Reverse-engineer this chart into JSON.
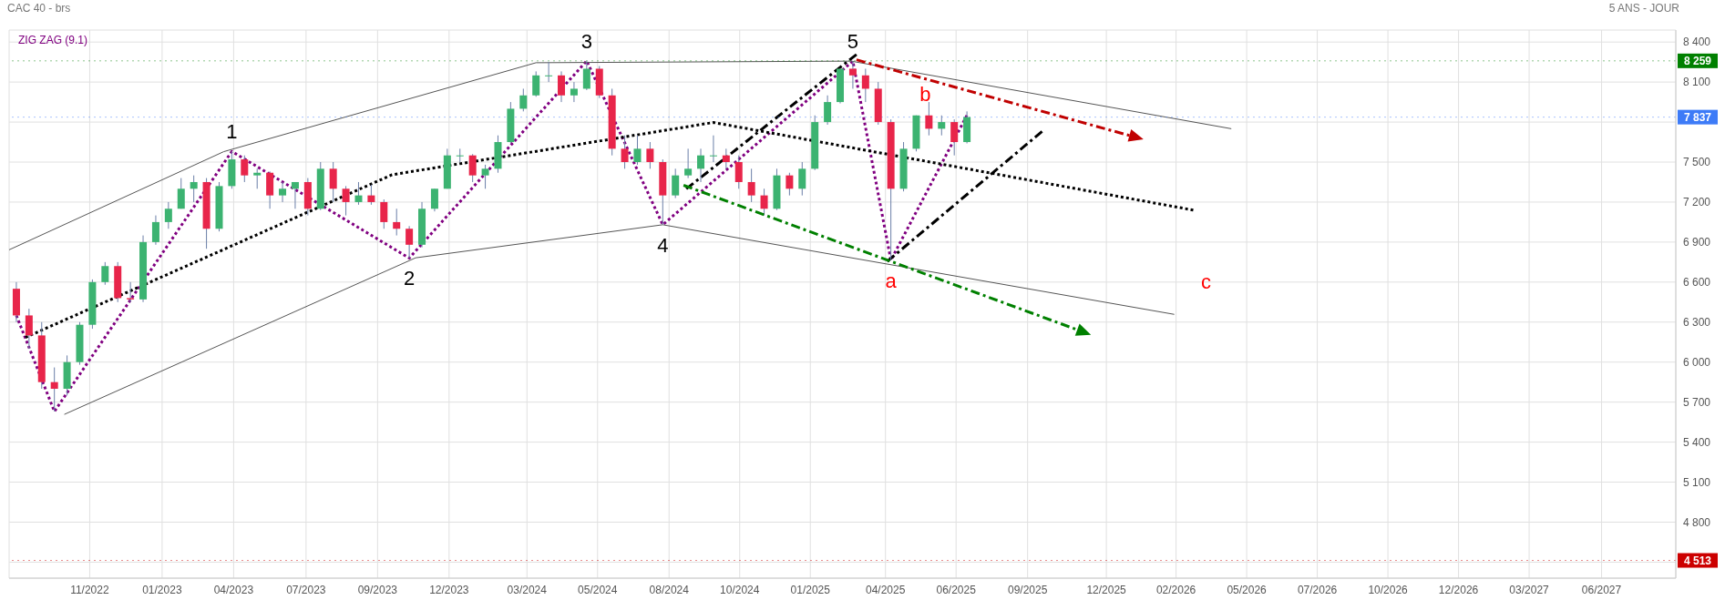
{
  "chart_data": {
    "type": "candlestick",
    "title": "CAC 40 - brs",
    "subtitle": "5 ANS - JOUR",
    "x": [
      "2022-08-15",
      "2022-08-29",
      "2022-09-12",
      "2022-09-26",
      "2022-10-10",
      "2022-10-24",
      "2022-11-07",
      "2022-11-21",
      "2022-12-05",
      "2022-12-19",
      "2023-01-02",
      "2023-01-16",
      "2023-01-30",
      "2023-02-13",
      "2023-02-27",
      "2023-03-13",
      "2023-03-27",
      "2023-04-10",
      "2023-04-24",
      "2023-05-08",
      "2023-05-22",
      "2023-06-05",
      "2023-06-19",
      "2023-07-03",
      "2023-07-17",
      "2023-07-31",
      "2023-08-14",
      "2023-08-28",
      "2023-09-11",
      "2023-09-25",
      "2023-10-09",
      "2023-10-23",
      "2023-11-06",
      "2023-11-20",
      "2023-12-04",
      "2023-12-18",
      "2024-01-01",
      "2024-01-15",
      "2024-01-29",
      "2024-02-12",
      "2024-02-26",
      "2024-03-11",
      "2024-03-25",
      "2024-04-08",
      "2024-04-22",
      "2024-05-06",
      "2024-05-20",
      "2024-06-03",
      "2024-06-17",
      "2024-07-01",
      "2024-07-15",
      "2024-07-29",
      "2024-08-12",
      "2024-08-26",
      "2024-09-09",
      "2024-09-23",
      "2024-10-07",
      "2024-10-21",
      "2024-11-04",
      "2024-11-18",
      "2024-12-02",
      "2024-12-16",
      "2024-12-30",
      "2025-01-13",
      "2025-01-27",
      "2025-02-10",
      "2025-02-24",
      "2025-03-10",
      "2025-03-24",
      "2025-04-07",
      "2025-04-21",
      "2025-05-05",
      "2025-05-19",
      "2025-06-02",
      "2025-06-16",
      "2025-06-30"
    ],
    "ohlc": [
      [
        6550,
        6600,
        6300,
        6350
      ],
      [
        6350,
        6400,
        6100,
        6200
      ],
      [
        6200,
        6300,
        5800,
        5850
      ],
      [
        5850,
        5960,
        5630,
        5800
      ],
      [
        5800,
        6050,
        5750,
        6000
      ],
      [
        6000,
        6300,
        5980,
        6280
      ],
      [
        6280,
        6620,
        6250,
        6600
      ],
      [
        6600,
        6750,
        6580,
        6720
      ],
      [
        6720,
        6750,
        6450,
        6480
      ],
      [
        6480,
        6600,
        6450,
        6470
      ],
      [
        6470,
        6950,
        6450,
        6900
      ],
      [
        6900,
        7100,
        6880,
        7050
      ],
      [
        7050,
        7200,
        7000,
        7150
      ],
      [
        7150,
        7380,
        7150,
        7300
      ],
      [
        7300,
        7400,
        7200,
        7350
      ],
      [
        7350,
        7380,
        6850,
        7000
      ],
      [
        7000,
        7350,
        6980,
        7320
      ],
      [
        7320,
        7580,
        7300,
        7520
      ],
      [
        7520,
        7550,
        7350,
        7400
      ],
      [
        7400,
        7450,
        7300,
        7420
      ],
      [
        7420,
        7430,
        7150,
        7250
      ],
      [
        7250,
        7350,
        7200,
        7300
      ],
      [
        7300,
        7350,
        7150,
        7350
      ],
      [
        7350,
        7380,
        7100,
        7150
      ],
      [
        7150,
        7500,
        7140,
        7450
      ],
      [
        7450,
        7500,
        7200,
        7300
      ],
      [
        7300,
        7320,
        7100,
        7200
      ],
      [
        7200,
        7350,
        7180,
        7250
      ],
      [
        7250,
        7330,
        7180,
        7200
      ],
      [
        7200,
        7220,
        7000,
        7050
      ],
      [
        7050,
        7150,
        6950,
        7000
      ],
      [
        7000,
        7020,
        6780,
        6880
      ],
      [
        6880,
        7200,
        6860,
        7150
      ],
      [
        7150,
        7300,
        7130,
        7300
      ],
      [
        7300,
        7600,
        7300,
        7550
      ],
      [
        7550,
        7600,
        7500,
        7550
      ],
      [
        7550,
        7560,
        7350,
        7400
      ],
      [
        7400,
        7480,
        7300,
        7450
      ],
      [
        7450,
        7700,
        7420,
        7650
      ],
      [
        7650,
        7950,
        7640,
        7900
      ],
      [
        7900,
        8050,
        7880,
        8000
      ],
      [
        8000,
        8180,
        7990,
        8150
      ],
      [
        8150,
        8250,
        8100,
        8150
      ],
      [
        8150,
        8180,
        7950,
        8000
      ],
      [
        8000,
        8100,
        7950,
        8050
      ],
      [
        8050,
        8259,
        8040,
        8200
      ],
      [
        8200,
        8220,
        7980,
        8000
      ],
      [
        8000,
        8050,
        7550,
        7600
      ],
      [
        7600,
        7700,
        7450,
        7500
      ],
      [
        7500,
        7700,
        7480,
        7600
      ],
      [
        7600,
        7650,
        7450,
        7500
      ],
      [
        7500,
        7520,
        7030,
        7250
      ],
      [
        7250,
        7450,
        7230,
        7400
      ],
      [
        7400,
        7600,
        7380,
        7450
      ],
      [
        7450,
        7600,
        7350,
        7550
      ],
      [
        7550,
        7700,
        7500,
        7550
      ],
      [
        7550,
        7600,
        7450,
        7500
      ],
      [
        7500,
        7550,
        7300,
        7350
      ],
      [
        7350,
        7450,
        7200,
        7250
      ],
      [
        7250,
        7300,
        7100,
        7150
      ],
      [
        7150,
        7450,
        7140,
        7400
      ],
      [
        7400,
        7420,
        7250,
        7300
      ],
      [
        7300,
        7500,
        7250,
        7450
      ],
      [
        7450,
        7850,
        7440,
        7800
      ],
      [
        7800,
        8000,
        7780,
        7950
      ],
      [
        7950,
        8200,
        7940,
        8200
      ],
      [
        8200,
        8257,
        8050,
        8150
      ],
      [
        8150,
        8200,
        7950,
        8050
      ],
      [
        8050,
        8100,
        7780,
        7800
      ],
      [
        7800,
        7820,
        6764,
        7300
      ],
      [
        7300,
        7650,
        7280,
        7600
      ],
      [
        7600,
        7850,
        7580,
        7850
      ],
      [
        7850,
        7950,
        7700,
        7750
      ],
      [
        7750,
        7850,
        7700,
        7800
      ],
      [
        7800,
        7820,
        7550,
        7650
      ],
      [
        7650,
        7880,
        7640,
        7837
      ]
    ],
    "series": [
      {
        "type": "line",
        "name": "ZIG ZAG (9.1)",
        "color": "#800080",
        "line_style": "dotted",
        "x": [
          "2022-08-15",
          "2022-09-26",
          "2023-04-10",
          "2023-10-23",
          "2024-05-06",
          "2024-07-29",
          "2025-02-24",
          "2025-04-07",
          "2025-06-30"
        ],
        "values": [
          6350,
          5630,
          7580,
          6780,
          8259,
          7030,
          8257,
          6764,
          7850
        ]
      },
      {
        "type": "line",
        "color": "#555555",
        "line_style": "solid",
        "x": [
          "2022-08-07",
          "2023-04-01",
          "2024-03-11",
          "2025-02-22",
          "2026-04-18"
        ],
        "values": [
          6842,
          7578,
          8245,
          8257,
          7750
        ]
      },
      {
        "type": "line",
        "color": "#555555",
        "line_style": "solid",
        "x": [
          "2022-10-07",
          "2023-10-30",
          "2024-07-29",
          "2026-02-14"
        ],
        "values": [
          5608,
          6782,
          7030,
          6358
        ]
      },
      {
        "type": "line",
        "color": "#000000",
        "line_style": "dotted",
        "x": [
          "2022-08-25",
          "2023-10-04",
          "2024-09-23",
          "2026-03-07"
        ],
        "values": [
          6185,
          7405,
          7797,
          7140
        ]
      },
      {
        "type": "line",
        "color": "#000000",
        "line_style": "dashed",
        "x": [
          "2024-08-24",
          "2025-02-28"
        ],
        "values": [
          7299,
          8307
        ]
      },
      {
        "type": "line",
        "color": "#000000",
        "line_style": "dashed",
        "x": [
          "2025-04-03",
          "2025-09-21"
        ],
        "values": [
          6755,
          7730
        ]
      }
    ],
    "annotations": [
      {
        "text": "1",
        "x": "2023-04-10",
        "y": 7580
      },
      {
        "text": "2",
        "x": "2023-10-23",
        "y": 6780
      },
      {
        "text": "3",
        "x": "2024-05-06",
        "y": 8259
      },
      {
        "text": "4",
        "x": "2024-07-29",
        "y": 7030
      },
      {
        "text": "5",
        "x": "2025-02-24",
        "y": 8257
      },
      {
        "text": "a",
        "x": "2025-04-07",
        "y": 6764
      },
      "b",
      "c"
    ],
    "ref_lines": [
      {
        "axis": "y",
        "value": 8259,
        "label": "8 259",
        "color": "#008000"
      },
      {
        "axis": "y",
        "value": 7837,
        "label": "7 837",
        "color": "#3d7bf7"
      },
      {
        "axis": "y",
        "value": 4513,
        "label": "4 513",
        "color": "#cc0000"
      }
    ],
    "xlim": [
      "2022-08-07",
      "2027-08-22"
    ],
    "xticks": [
      {
        "value": "2022-11-04",
        "label": "11/2022"
      },
      {
        "value": "2023-01-23",
        "label": "01/2023"
      },
      {
        "value": "2023-04-12",
        "label": "04/2023"
      },
      {
        "value": "2023-07-01",
        "label": "07/2023"
      },
      {
        "value": "2023-09-18",
        "label": "09/2023"
      },
      {
        "value": "2023-12-06",
        "label": "12/2023"
      },
      {
        "value": "2024-03-01",
        "label": "03/2024"
      },
      {
        "value": "2024-05-18",
        "label": "05/2024"
      },
      {
        "value": "2024-08-05",
        "label": "08/2024"
      },
      {
        "value": "2024-10-22",
        "label": "10/2024"
      },
      {
        "value": "2025-01-08",
        "label": "01/2025"
      },
      {
        "value": "2025-04-01",
        "label": "04/2025"
      },
      {
        "value": "2025-06-18",
        "label": "06/2025"
      },
      {
        "value": "2025-09-05",
        "label": "09/2025"
      },
      {
        "value": "2025-12-01",
        "label": "12/2025"
      },
      {
        "value": "2026-02-16",
        "label": "02/2026"
      },
      {
        "value": "2026-05-05",
        "label": "05/2026"
      },
      {
        "value": "2026-07-22",
        "label": "07/2026"
      },
      {
        "value": "2026-10-08",
        "label": "10/2026"
      },
      {
        "value": "2026-12-25",
        "label": "12/2026"
      },
      {
        "value": "2027-03-13",
        "label": "03/2027"
      },
      {
        "value": "2027-06-01",
        "label": "06/2027"
      }
    ],
    "ylim": [
      4380,
      8490
    ],
    "yticks": [
      {
        "value": 4500,
        "label": null
      },
      {
        "value": 4800,
        "label": "4 800"
      },
      {
        "value": 5100,
        "label": "5 100"
      },
      {
        "value": 5400,
        "label": "5 400"
      },
      {
        "value": 5700,
        "label": "5 700"
      },
      {
        "value": 6000,
        "label": "6 000"
      },
      {
        "value": 6300,
        "label": "6 300"
      },
      {
        "value": 6600,
        "label": "6 600"
      },
      {
        "value": 6900,
        "label": "6 900"
      },
      {
        "value": 7200,
        "label": "7 200"
      },
      {
        "value": 7500,
        "label": "7 500"
      },
      {
        "value": 7800,
        "label": null
      },
      {
        "value": 8100,
        "label": "8 100"
      },
      {
        "value": 8400,
        "label": "8 400"
      }
    ],
    "grid": true,
    "legend": "top left"
  }
}
